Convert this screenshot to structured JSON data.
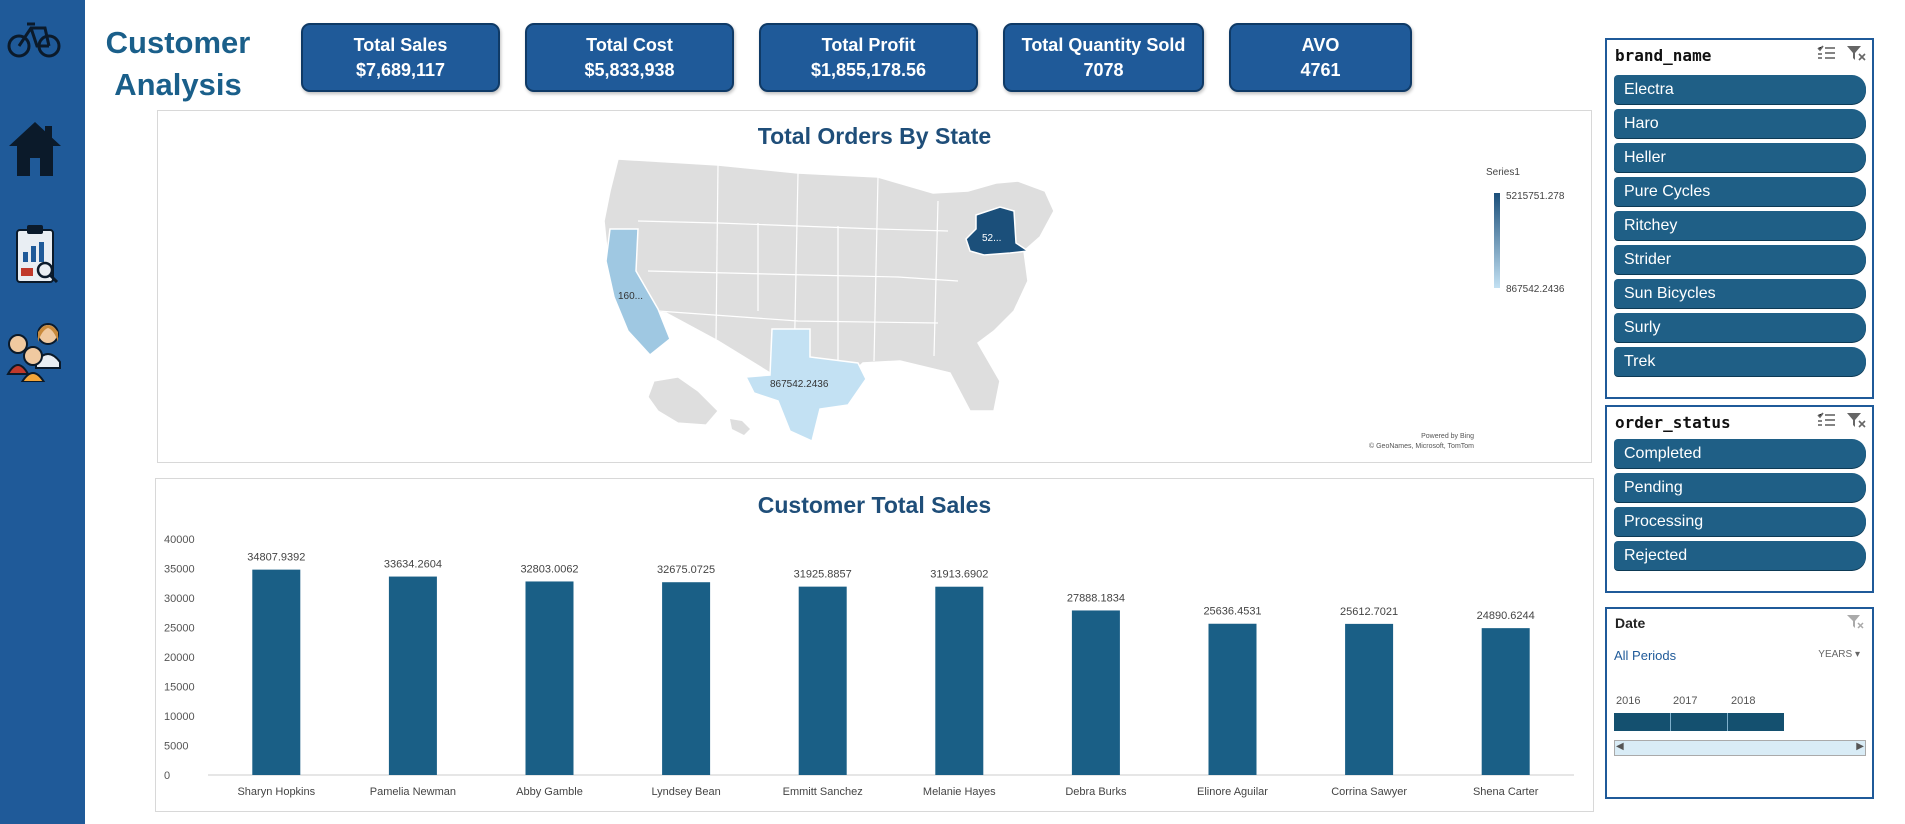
{
  "page": {
    "title_line1": "Customer",
    "title_line2": "Analysis"
  },
  "nav": [
    {
      "name": "bike-logo-icon"
    },
    {
      "name": "home-icon"
    },
    {
      "name": "report-icon"
    },
    {
      "name": "customers-icon"
    }
  ],
  "kpis": [
    {
      "label": "Total Sales",
      "value": "$7,689,117"
    },
    {
      "label": "Total Cost",
      "value": "$5,833,938"
    },
    {
      "label": "Total Profit",
      "value": "$1,855,178.56"
    },
    {
      "label": "Total Quantity Sold",
      "value": "7078"
    },
    {
      "label": "AVO",
      "value": "4761"
    }
  ],
  "map": {
    "title": "Total Orders By State",
    "legend_title": "Series1",
    "legend_max": "5215751.278",
    "legend_min": "867542.2436",
    "labels": {
      "ny": "52...",
      "ca": "160...",
      "tx": "867542.2436"
    },
    "attribution_1": "Powered by Bing",
    "attribution_2": "© GeoNames, Microsoft, TomTom",
    "colors": {
      "base": "#dedede",
      "ny": "#1b4f7a",
      "ca": "#9fc8e2",
      "tx": "#c3e1f3"
    }
  },
  "chart_data": {
    "type": "bar",
    "title": "Customer Total Sales",
    "categories": [
      "Sharyn Hopkins",
      "Pamelia Newman",
      "Abby Gamble",
      "Lyndsey Bean",
      "Emmitt Sanchez",
      "Melanie Hayes",
      "Debra Burks",
      "Elinore Aguilar",
      "Corrina Sawyer",
      "Shena Carter"
    ],
    "values": [
      34807.9392,
      33634.2604,
      32803.0062,
      32675.0725,
      31925.8857,
      31913.6902,
      27888.1834,
      25636.4531,
      25612.7021,
      24890.6244
    ],
    "value_labels": [
      "34807.9392",
      "33634.2604",
      "32803.0062",
      "32675.0725",
      "31925.8857",
      "31913.6902",
      "27888.1834",
      "25636.4531",
      "25612.7021",
      "24890.6244"
    ],
    "y_ticks": [
      "0",
      "5000",
      "10000",
      "15000",
      "20000",
      "25000",
      "30000",
      "35000",
      "40000"
    ],
    "ylim": [
      0,
      40000
    ],
    "xlabel": "",
    "ylabel": "",
    "color": "#1a5f86"
  },
  "slicers": {
    "brand": {
      "title": "brand_name",
      "items": [
        "Electra",
        "Haro",
        "Heller",
        "Pure Cycles",
        "Ritchey",
        "Strider",
        "Sun Bicycles",
        "Surly",
        "Trek"
      ]
    },
    "status": {
      "title": "order_status",
      "items": [
        "Completed",
        "Pending",
        "Processing",
        "Rejected"
      ]
    },
    "date": {
      "title": "Date",
      "period": "All Periods",
      "unit": "YEARS",
      "years": [
        "2016",
        "2017",
        "2018"
      ]
    }
  }
}
